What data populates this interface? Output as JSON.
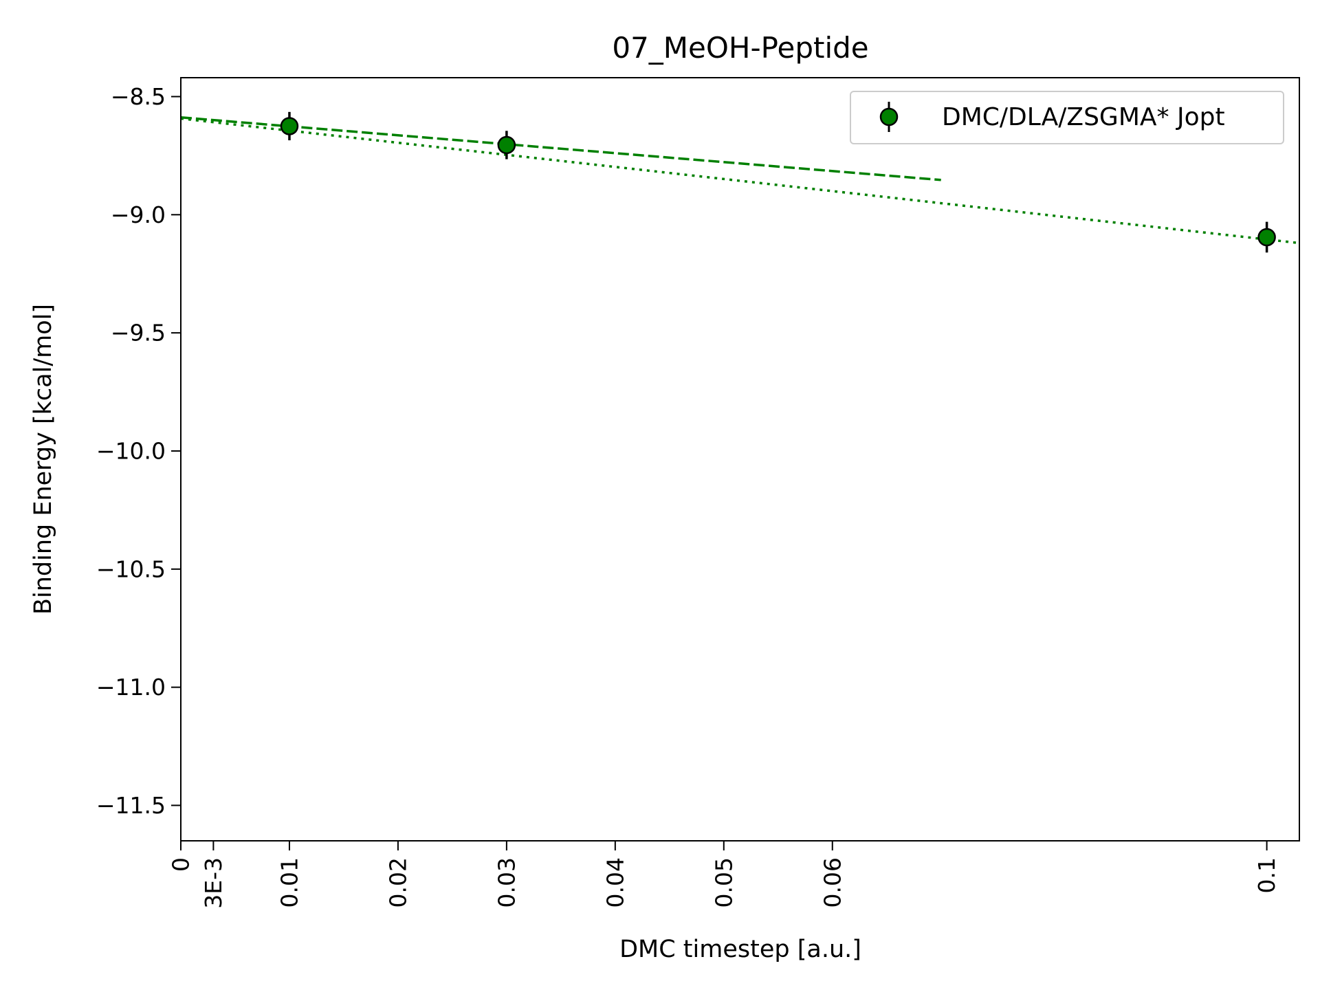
{
  "chart_data": {
    "type": "scatter",
    "title": "07_MeOH-Peptide",
    "xlabel": "DMC timestep [a.u.]",
    "ylabel": "Binding Energy [kcal/mol]",
    "xlim": [
      0,
      0.103
    ],
    "ylim": [
      -11.65,
      -8.42
    ],
    "xticks": [
      {
        "value": 0,
        "label": "0"
      },
      {
        "value": 0.003,
        "label": "3E-3"
      },
      {
        "value": 0.01,
        "label": "0.01"
      },
      {
        "value": 0.02,
        "label": "0.02"
      },
      {
        "value": 0.03,
        "label": "0.03"
      },
      {
        "value": 0.04,
        "label": "0.04"
      },
      {
        "value": 0.05,
        "label": "0.05"
      },
      {
        "value": 0.06,
        "label": "0.06"
      },
      {
        "value": 0.1,
        "label": "0.1"
      }
    ],
    "yticks": [
      {
        "value": -8.5,
        "label": "−8.5"
      },
      {
        "value": -9.0,
        "label": "−9.0"
      },
      {
        "value": -9.5,
        "label": "−9.5"
      },
      {
        "value": -10.0,
        "label": "−10.0"
      },
      {
        "value": -10.5,
        "label": "−10.5"
      },
      {
        "value": -11.0,
        "label": "−11.0"
      },
      {
        "value": -11.5,
        "label": "−11.5"
      }
    ],
    "grid": false,
    "legend_position": "top-right",
    "series": [
      {
        "name": "DMC/DLA/ZSGMA* Jopt",
        "color": "#008000",
        "x": [
          0.01,
          0.03,
          0.1
        ],
        "y": [
          -8.625,
          -8.705,
          -9.095
        ],
        "yerr": [
          0.06,
          0.06,
          0.065
        ]
      }
    ],
    "fits": [
      {
        "style": "dashed",
        "color": "#008000",
        "x": [
          0,
          0.07
        ],
        "y": [
          -8.588,
          -8.853
        ]
      },
      {
        "style": "dotted",
        "color": "#008000",
        "x": [
          0,
          0.103
        ],
        "y": [
          -8.593,
          -9.12
        ]
      }
    ]
  }
}
